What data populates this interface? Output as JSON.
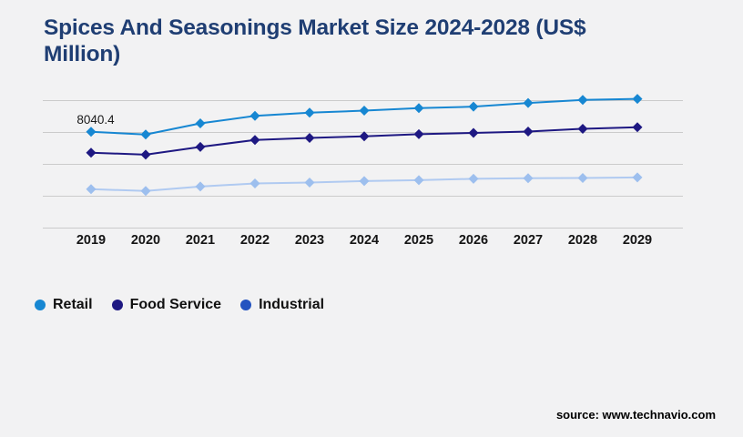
{
  "page": {
    "background_color": "#f2f2f3",
    "source_note": "source: www.technavio.com"
  },
  "header": {
    "title_full": "Spices And Seasonings Market Size 2024-2028 (US$ Million)",
    "title_line1": "Spices And Seasonings Market Size 2024-2028 (US$",
    "title_line2": "Million)",
    "title_color": "#1f3e73"
  },
  "chart_data": {
    "type": "line",
    "title": "Spices And Seasonings Market Size 2024-2028 (US$ Million)",
    "unit": "US$ Million",
    "x": [
      2019,
      2020,
      2021,
      2022,
      2023,
      2024,
      2025,
      2026,
      2027,
      2028,
      2029
    ],
    "series": [
      {
        "name": "Retail",
        "color": "#1787d2",
        "marker_fill": "#1787d2",
        "legend_color": "#1787d2",
        "marker": "diamond",
        "values": [
          8040.4,
          7870,
          8570,
          9040,
          9240,
          9370,
          9530,
          9620,
          9850,
          10040,
          10110
        ]
      },
      {
        "name": "Food Service",
        "color": "#1e1882",
        "marker_fill": "#1e1882",
        "legend_color": "#1e1882",
        "marker": "diamond",
        "values": [
          6730,
          6610,
          7090,
          7530,
          7660,
          7760,
          7890,
          7970,
          8060,
          8230,
          8330
        ]
      },
      {
        "name": "Industrial",
        "color": "#b0caf1",
        "marker_fill": "#9dbfee",
        "legend_color": "#2353c0",
        "marker": "diamond",
        "values": [
          4440,
          4330,
          4610,
          4800,
          4860,
          4950,
          5010,
          5090,
          5130,
          5140,
          5180
        ]
      }
    ],
    "annotations": [
      {
        "series": "Retail",
        "x": 2019,
        "text": "8040.4"
      }
    ],
    "ylim": [
      2000,
      10000
    ],
    "gridline_values": [
      2000,
      4000,
      6000,
      8000,
      10000
    ],
    "grid": true,
    "gridline_color": "#cbcbcb",
    "legend_position": "bottom-left",
    "xlabel": "",
    "ylabel": ""
  },
  "legend": {
    "items": [
      {
        "label": "Retail",
        "color": "#1787d2"
      },
      {
        "label": "Food Service",
        "color": "#1e1882"
      },
      {
        "label": "Industrial",
        "color": "#2353c0"
      }
    ]
  }
}
